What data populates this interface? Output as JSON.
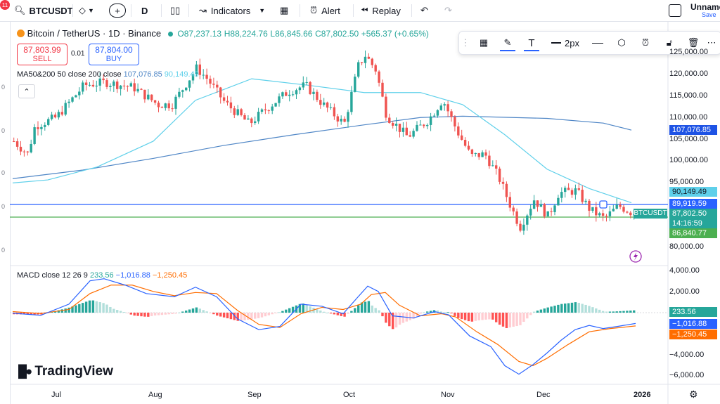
{
  "header": {
    "notif_count": "11",
    "symbol": "BTCUSDT",
    "interval": "D",
    "indicators_label": "Indicators",
    "alert_label": "Alert",
    "replay_label": "Replay",
    "layout_name": "Unname",
    "save_label": "Save"
  },
  "legend": {
    "title": "Bitcoin / TetherUS · 1D · Binance",
    "open": "O87,237.13",
    "high": "H88,224.76",
    "low": "L86,845.66",
    "close": "C87,802.50",
    "change": "+565.37 (+0.65%)"
  },
  "trade": {
    "sell_price": "87,803.99",
    "sell_label": "SELL",
    "spread": "0.01",
    "buy_price": "87,804.00",
    "buy_label": "BUY"
  },
  "ma": {
    "label": "MA50&200 50 close 200 close",
    "v200": "107,076.85",
    "v50": "90,149.49"
  },
  "macd": {
    "label": "MACD close 12 26 9",
    "hist": "233.56",
    "macd": "−1,016.88",
    "signal": "−1,250.45"
  },
  "draw_toolbar": {
    "width_label": "2px"
  },
  "price_axis": {
    "ticks": [
      "125,000.00",
      "120,000.00",
      "115,000.00",
      "110,000.00",
      "105,000.00",
      "100,000.00",
      "95,000.00",
      "80,000.00"
    ],
    "tags": {
      "ma200": "107,076.85",
      "ma50": "90,149.49",
      "hline": "89,919.59",
      "last": "87,802.50",
      "countdown": "14:16:59",
      "low": "86,840.77",
      "symbol": "BTCUSDT"
    }
  },
  "macd_axis": {
    "ticks": [
      "4,000.00",
      "2,000.00",
      "−4,000.00",
      "−6,000.00"
    ],
    "tags": {
      "hist": "233.56",
      "macd": "−1,016.88",
      "signal": "−1,250.45"
    }
  },
  "time_axis": [
    "Jul",
    "Aug",
    "Sep",
    "Oct",
    "Nov",
    "Dec",
    "2026"
  ],
  "brand": "TradingView",
  "colors": {
    "up": "#26a69a",
    "down": "#ef5350",
    "ma50": "#5fd0ea",
    "ma200": "#4f86c6",
    "macd_line": "#2962ff",
    "signal_line": "#ff6d00",
    "hline_blue": "#2962ff",
    "hline_green": "#4caf50"
  },
  "chart_data": {
    "type": "candlestick",
    "title": "Bitcoin / TetherUS · 1D · Binance",
    "ylim": [
      78000,
      126000
    ],
    "ma50": [
      [
        0,
        94800
      ],
      [
        50,
        95500
      ],
      [
        120,
        98500
      ],
      [
        200,
        104500
      ],
      [
        260,
        114000
      ],
      [
        340,
        119000
      ],
      [
        420,
        117500
      ],
      [
        500,
        115800
      ],
      [
        580,
        115800
      ],
      [
        640,
        113000
      ],
      [
        700,
        106000
      ],
      [
        760,
        98000
      ],
      [
        820,
        93500
      ],
      [
        880,
        90200
      ]
    ],
    "ma200": [
      [
        0,
        95800
      ],
      [
        100,
        97800
      ],
      [
        200,
        100500
      ],
      [
        300,
        103500
      ],
      [
        400,
        106000
      ],
      [
        500,
        108300
      ],
      [
        580,
        110000
      ],
      [
        640,
        110300
      ],
      [
        760,
        109800
      ],
      [
        840,
        108700
      ],
      [
        880,
        107077
      ]
    ],
    "hlines": [
      89919.59,
      87802.5
    ],
    "macd_ylim": [
      -6500,
      5000
    ]
  }
}
